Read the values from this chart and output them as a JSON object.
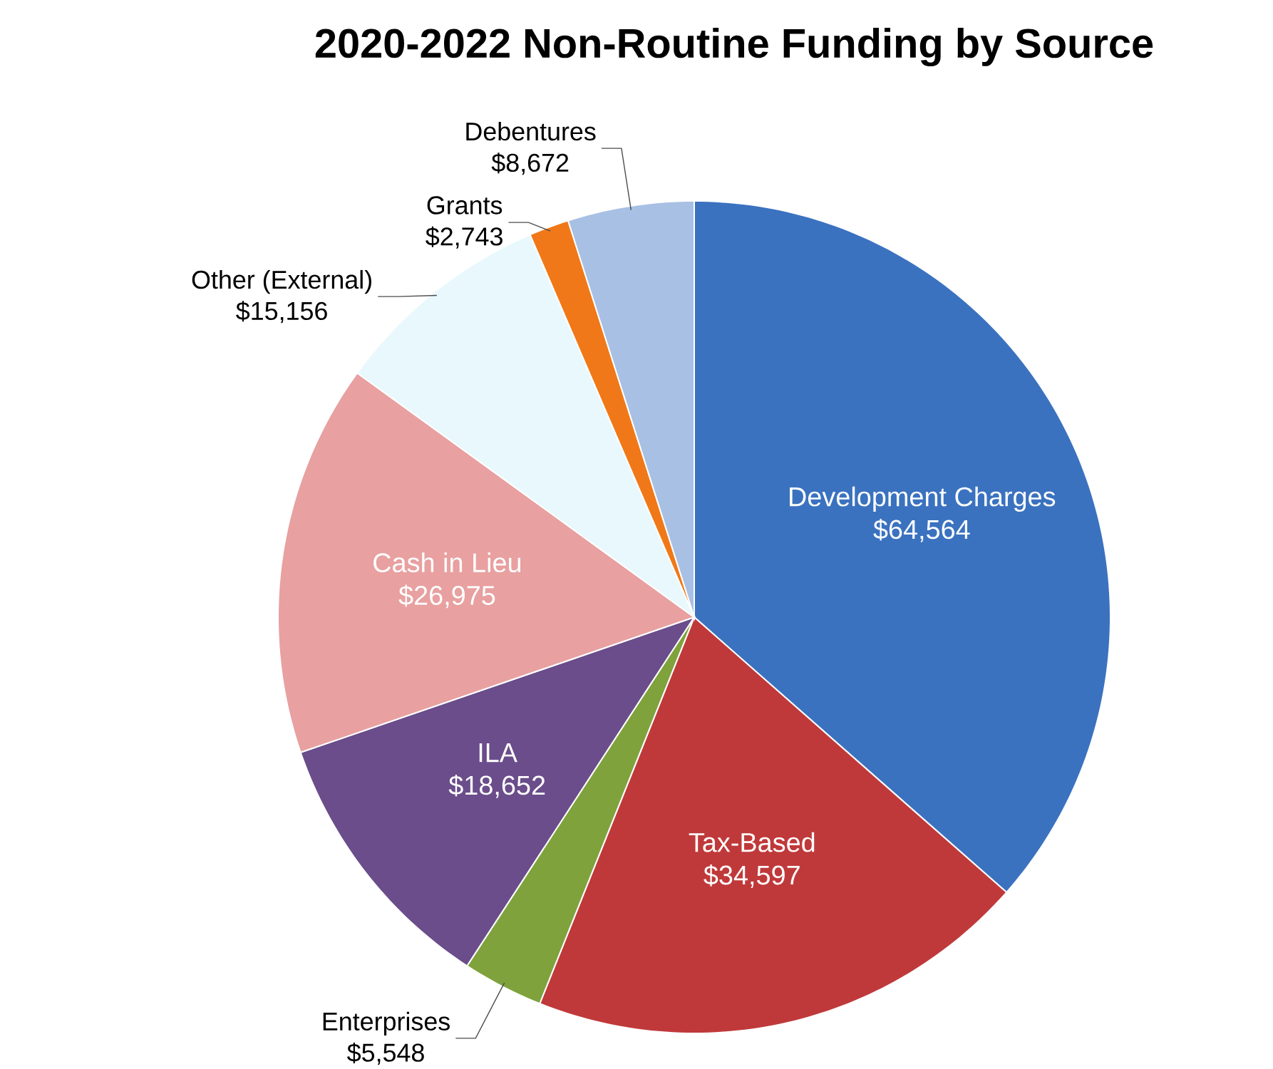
{
  "chart_data": {
    "type": "pie",
    "title": "2020-2022 Non-Routine Funding by Source",
    "categories": [
      "Development Charges",
      "Tax-Based",
      "Enterprises",
      "ILA",
      "Cash in Lieu",
      "Other (External)",
      "Grants",
      "Debentures"
    ],
    "values": [
      64564,
      34597,
      5548,
      18652,
      26975,
      15156,
      2743,
      8672
    ],
    "value_labels": [
      "$64,564",
      "$34,597",
      "$5,548",
      "$18,652",
      "$26,975",
      "$15,156",
      "$2,743",
      "$8,672"
    ],
    "colors": [
      "#3b72c0",
      "#c0393a",
      "#7fa23c",
      "#6a4d8a",
      "#e8a0a0",
      "#e8f8fd",
      "#f07818",
      "#a8c0e4"
    ]
  }
}
